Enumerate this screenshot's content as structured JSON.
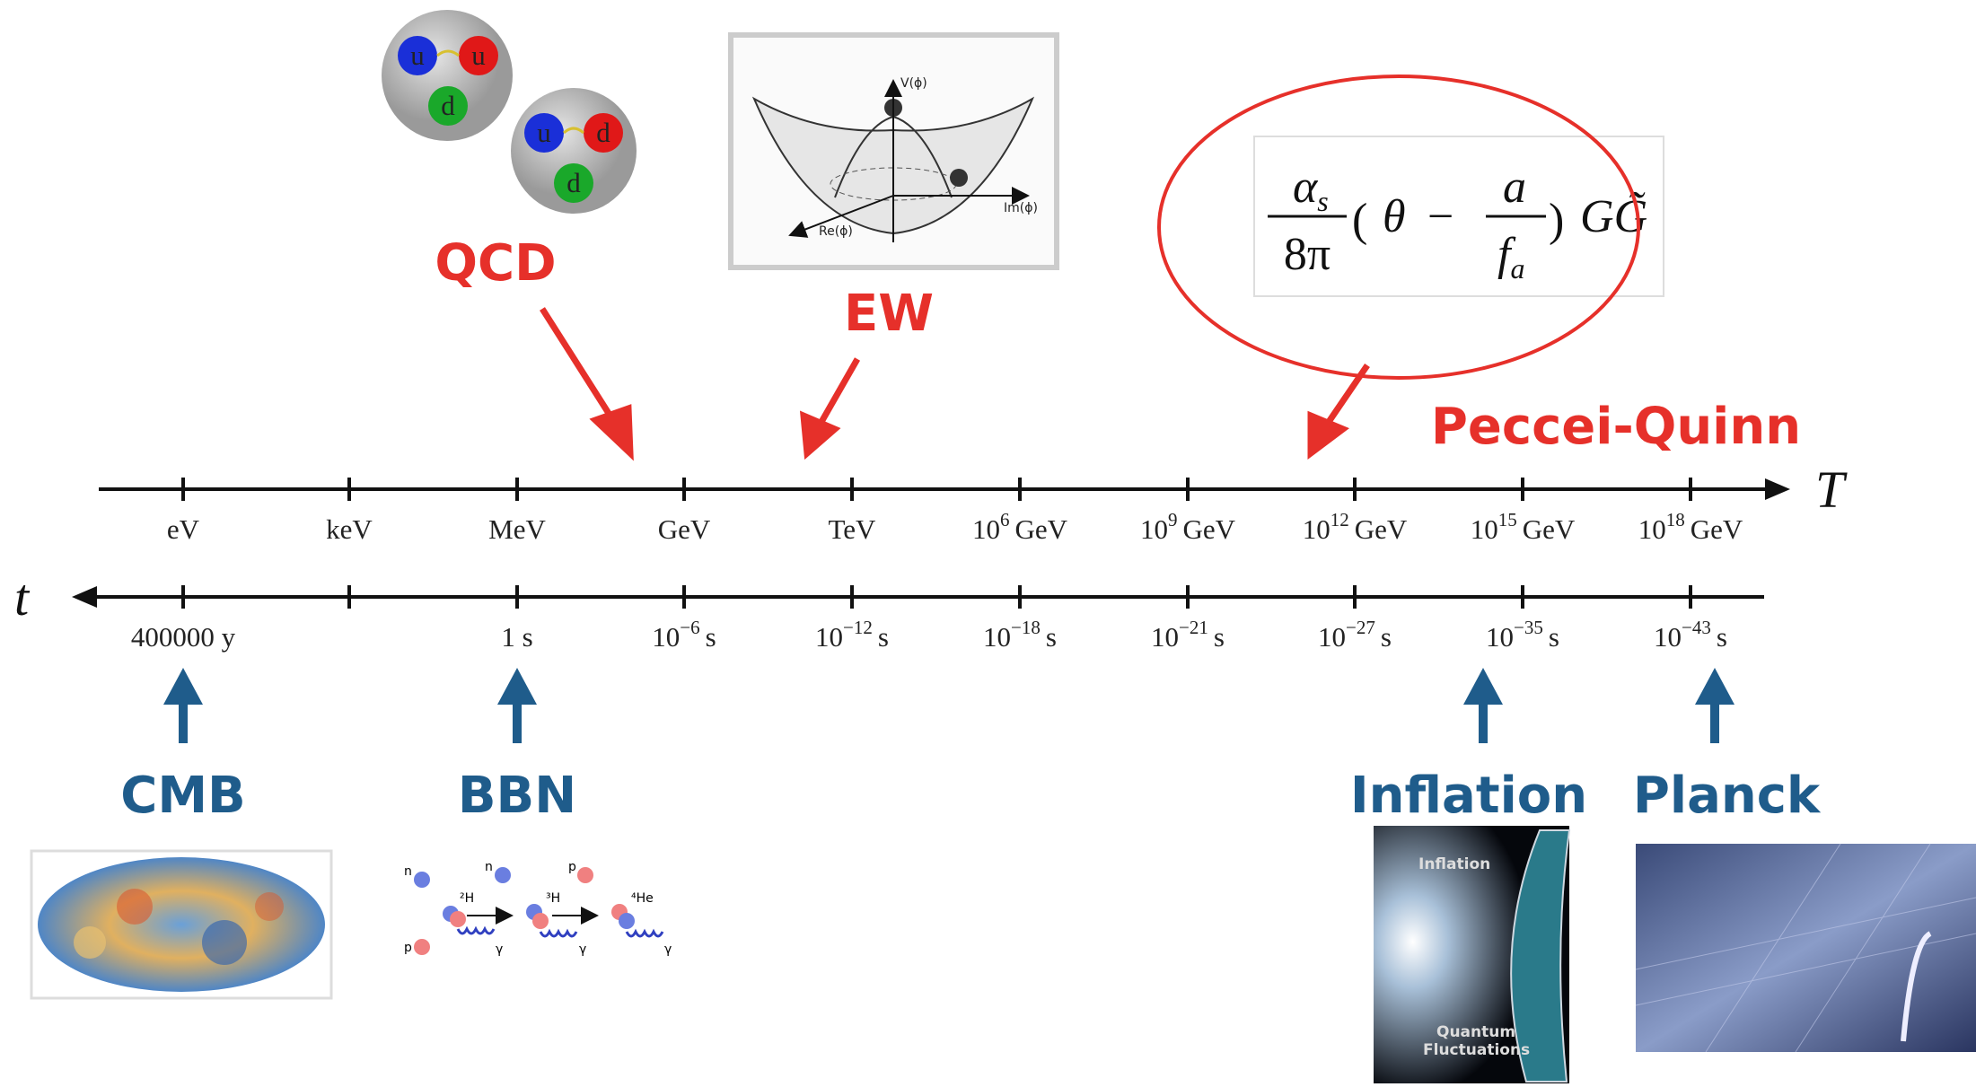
{
  "axes": {
    "temperature_label": "T",
    "time_label": "t",
    "temperature_ticks": [
      {
        "unit": "eV"
      },
      {
        "unit": "keV"
      },
      {
        "unit": "MeV"
      },
      {
        "unit": "GeV"
      },
      {
        "unit": "TeV"
      },
      {
        "base": "10",
        "exp": "6",
        "unit": "GeV"
      },
      {
        "base": "10",
        "exp": "9",
        "unit": "GeV"
      },
      {
        "base": "10",
        "exp": "12",
        "unit": "GeV"
      },
      {
        "base": "10",
        "exp": "15",
        "unit": "GeV"
      },
      {
        "base": "10",
        "exp": "18",
        "unit": "GeV"
      }
    ],
    "time_ticks": [
      {
        "unit": "400000 y"
      },
      null,
      {
        "unit": "1 s"
      },
      {
        "base": "10",
        "exp": "−6",
        "unit": "s"
      },
      {
        "base": "10",
        "exp": "−12",
        "unit": "s"
      },
      {
        "base": "10",
        "exp": "−18",
        "unit": "s"
      },
      {
        "base": "10",
        "exp": "−21",
        "unit": "s"
      },
      {
        "base": "10",
        "exp": "−27",
        "unit": "s"
      },
      {
        "base": "10",
        "exp": "−35",
        "unit": "s"
      },
      {
        "base": "10",
        "exp": "−43",
        "unit": "s"
      }
    ]
  },
  "transitions": [
    "QCD",
    "EW",
    "Peccei-Quinn"
  ],
  "epochs": [
    "CMB",
    "BBN",
    "Inflation",
    "Planck"
  ],
  "formula": {
    "alpha": "α",
    "alpha_sub": "s",
    "denominator": "8π",
    "theta": "θ",
    "minus": "−",
    "a": "a",
    "f": "f",
    "f_sub": "a",
    "field": "G",
    "dual_field": "G̃"
  },
  "potential_labels": [
    "V(ϕ)",
    "Re(ϕ)",
    "Im(ϕ)"
  ],
  "protons": [
    [
      "u",
      "u",
      "d"
    ],
    [
      "u",
      "d",
      "d"
    ]
  ],
  "bbn_labels": [
    "n",
    "p",
    "²H",
    "n",
    "³H",
    "p",
    "⁴He",
    "γ",
    "γ",
    "γ"
  ],
  "inflation_labels": [
    "Inflation",
    "Quantum",
    "Fluctuations"
  ]
}
